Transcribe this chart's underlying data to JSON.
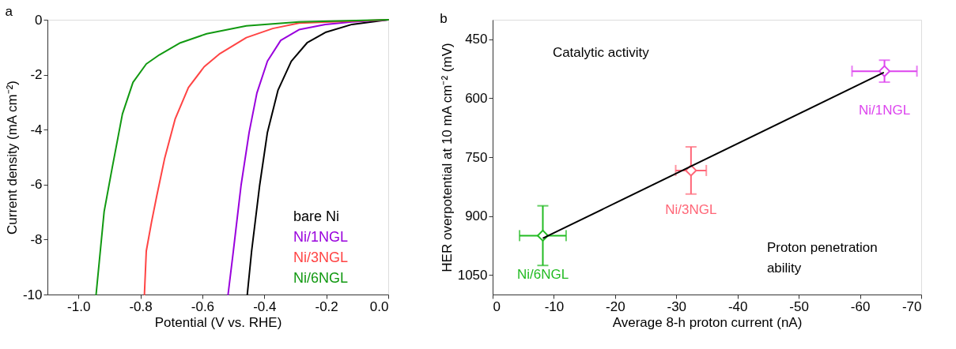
{
  "chart_data": [
    {
      "type": "line",
      "title": "a",
      "xlabel": "Potential (V vs. RHE)",
      "ylabel": "Current density (mA cm⁻²)",
      "xlim": [
        -1.1,
        0
      ],
      "xticks": [
        {
          "value": -1,
          "label": "-1.0"
        },
        {
          "value": -0.8,
          "label": "-0.8"
        },
        {
          "value": -0.6,
          "label": "-0.6"
        },
        {
          "value": -0.4,
          "label": "-0.4"
        },
        {
          "value": -0.2,
          "label": "-0.2"
        },
        {
          "value": 0,
          "label": "0.0"
        }
      ],
      "ylim": [
        -10,
        0
      ],
      "yticks": [
        -10,
        -8,
        -6,
        -4,
        -2,
        0
      ],
      "legend": "bottom right",
      "grid": false,
      "series": [
        {
          "name": "bare Ni",
          "color": "#000000",
          "x": [
            -0.455,
            -0.441,
            -0.415,
            -0.39,
            -0.356,
            -0.313,
            -0.262,
            -0.203,
            -0.117,
            0
          ],
          "values": [
            -10,
            -8.42,
            -6.02,
            -4.1,
            -2.57,
            -1.51,
            -0.84,
            -0.46,
            -0.17,
            0
          ]
        },
        {
          "name": "Ni/1NGL",
          "color": "#9900dd",
          "x": [
            -0.517,
            -0.5,
            -0.475,
            -0.449,
            -0.424,
            -0.39,
            -0.347,
            -0.288,
            -0.203,
            -0.117,
            0
          ],
          "values": [
            -10,
            -8.42,
            -6.02,
            -4.1,
            -2.67,
            -1.51,
            -0.75,
            -0.36,
            -0.17,
            -0.08,
            0
          ]
        },
        {
          "name": "Ni/3NGL",
          "color": "#ff4444",
          "x": [
            -0.787,
            -0.781,
            -0.764,
            -0.747,
            -0.722,
            -0.688,
            -0.645,
            -0.594,
            -0.543,
            -0.458,
            -0.373,
            -0.288,
            0
          ],
          "values": [
            -10,
            -8.42,
            -7.36,
            -6.4,
            -5.06,
            -3.62,
            -2.47,
            -1.71,
            -1.23,
            -0.65,
            -0.32,
            -0.12,
            0
          ]
        },
        {
          "name": "Ni/6NGL",
          "color": "#119911",
          "x": [
            -0.943,
            -0.917,
            -0.892,
            -0.858,
            -0.824,
            -0.781,
            -0.739,
            -0.671,
            -0.586,
            -0.458,
            -0.288,
            0
          ],
          "values": [
            -10,
            -6.98,
            -5.45,
            -3.43,
            -2.28,
            -1.61,
            -1.28,
            -0.84,
            -0.51,
            -0.22,
            -0.08,
            0
          ]
        }
      ]
    },
    {
      "type": "scatter",
      "title": "b",
      "xlabel": "Average 8-h proton current (nA)",
      "ylabel": "HER overpotential at 10 mA cm⁻² (mV)",
      "xlim": [
        0,
        -70
      ],
      "xticks": [
        0,
        -10,
        -20,
        -30,
        -40,
        -50,
        -60,
        -70
      ],
      "ylim": [
        1100,
        400
      ],
      "yticks": [
        450,
        600,
        750,
        900,
        1050
      ],
      "legend": false,
      "grid": false,
      "marker": "diamond",
      "annotations": [
        "Catalytic activity",
        "Proton penetration ability"
      ],
      "series": [
        {
          "name": "Ni/6NGL",
          "color": "#22bb22",
          "x": [
            -8.2
          ],
          "values": [
            950
          ],
          "errors": [
            76
          ],
          "xerrors": [
            3.8
          ]
        },
        {
          "name": "Ni/3NGL",
          "color": "#ff6677",
          "x": [
            -32.4
          ],
          "values": [
            784
          ],
          "errors": [
            60
          ],
          "xerrors": [
            2.5
          ]
        },
        {
          "name": "Ni/1NGL",
          "color": "#dd44ee",
          "x": [
            -64
          ],
          "values": [
            531
          ],
          "errors": [
            28
          ],
          "xerrors": [
            5.3
          ]
        },
        {
          "type": "line",
          "marker": "none",
          "line_style": "solid",
          "color": "#000000",
          "x": [
            -8.3,
            -63.8
          ],
          "values": [
            956,
            535
          ]
        }
      ]
    }
  ]
}
